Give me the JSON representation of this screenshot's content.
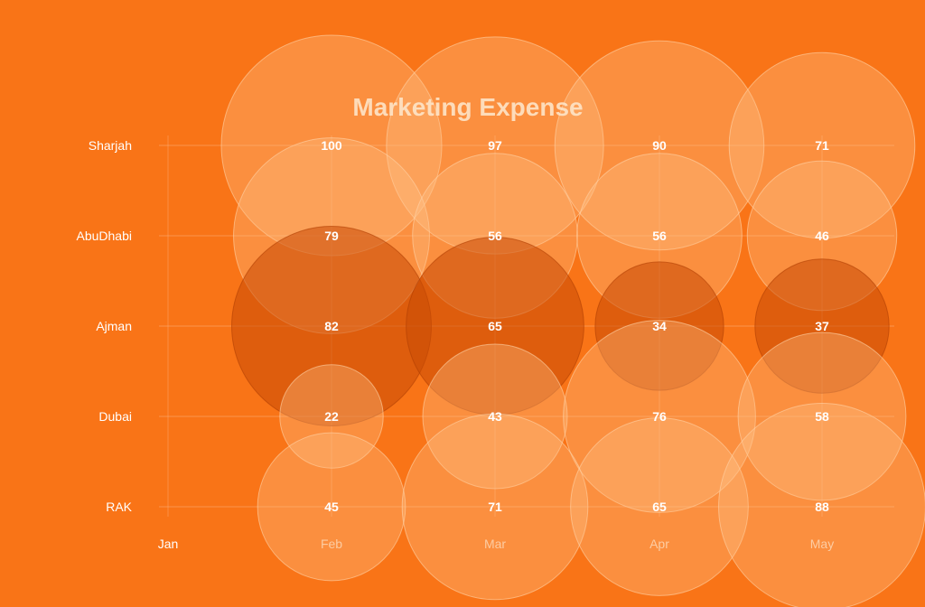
{
  "chart_data": {
    "type": "bubble",
    "title": "Marketing Expense",
    "x_categories": [
      "Jan",
      "Feb",
      "Mar",
      "Apr",
      "May"
    ],
    "y_categories": [
      "Sharjah",
      "AbuDhabi",
      "Ajman",
      "Dubai",
      "RAK"
    ],
    "series": [
      {
        "row": "Sharjah",
        "x": [
          "Feb",
          "Mar",
          "Apr",
          "May"
        ],
        "values": [
          100,
          97,
          90,
          71
        ]
      },
      {
        "row": "AbuDhabi",
        "x": [
          "Feb",
          "Mar",
          "Apr",
          "May"
        ],
        "values": [
          79,
          56,
          56,
          46
        ]
      },
      {
        "row": "Ajman",
        "x": [
          "Feb",
          "Mar",
          "Apr",
          "May"
        ],
        "values": [
          82,
          65,
          34,
          37
        ]
      },
      {
        "row": "Dubai",
        "x": [
          "Feb",
          "Mar",
          "Apr",
          "May"
        ],
        "values": [
          22,
          43,
          76,
          58
        ]
      },
      {
        "row": "RAK",
        "x": [
          "Feb",
          "Mar",
          "Apr",
          "May"
        ],
        "values": [
          45,
          71,
          65,
          88
        ]
      }
    ],
    "value_max": 100,
    "grid": true,
    "legend": "none",
    "colors": {
      "background": "#f97417",
      "light_bubble": "#ffc48a",
      "dark_bubble": "#c94a05",
      "title": "#fde4c8",
      "label": "#ffffff",
      "grid": "#fbb07a"
    }
  }
}
